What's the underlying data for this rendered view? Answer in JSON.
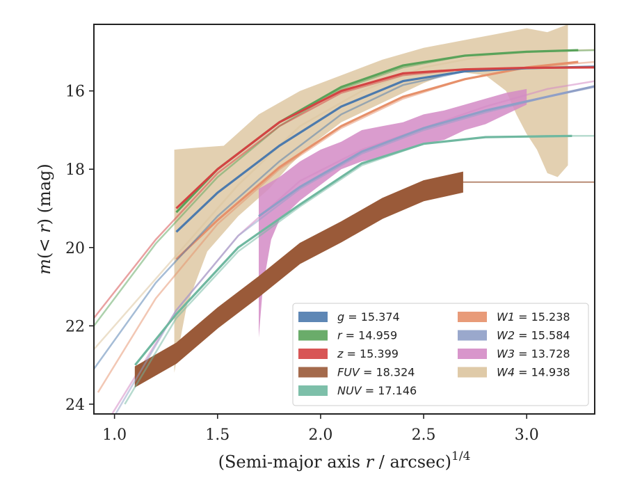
{
  "chart_data": {
    "type": "line",
    "xlabel": "(Semi-major axis r / arcsec)^{1/4}",
    "xlabel_parts": {
      "pre": "(Semi-major axis ",
      "var": "r",
      "post": " / arcsec)",
      "sup": "1/4"
    },
    "ylabel": "m(< r) (mag)",
    "ylabel_parts": {
      "m": "m",
      "open": "(",
      "lt": "< ",
      "r": "r",
      "close": ")",
      "unit": " (mag)"
    },
    "xlim": [
      0.9,
      3.33
    ],
    "ylim": [
      24.25,
      14.3
    ],
    "y_inverted": true,
    "xticks": [
      1.0,
      1.5,
      2.0,
      2.5,
      3.0
    ],
    "xtick_labels": [
      "1.0",
      "1.5",
      "2.0",
      "2.5",
      "3.0"
    ],
    "yticks": [
      16,
      18,
      20,
      22,
      24
    ],
    "ytick_labels": [
      "16",
      "18",
      "20",
      "22",
      "24"
    ],
    "grid": false,
    "legend_position": "lower-right",
    "legend_columns": 2,
    "series": [
      {
        "name": "g",
        "total": "15.374",
        "color": "#4c7aad",
        "kind": "curve",
        "fit": [
          [
            0.9,
            23.1
          ],
          [
            1.2,
            20.9
          ],
          [
            1.5,
            19.2
          ],
          [
            1.8,
            17.8
          ],
          [
            2.1,
            16.6
          ],
          [
            2.4,
            15.85
          ],
          [
            2.7,
            15.5
          ],
          [
            3.0,
            15.42
          ],
          [
            3.33,
            15.38
          ]
        ],
        "data": [
          [
            1.3,
            19.6
          ],
          [
            1.5,
            18.6
          ],
          [
            1.8,
            17.4
          ],
          [
            2.1,
            16.4
          ],
          [
            2.4,
            15.75
          ],
          [
            2.7,
            15.5
          ],
          [
            3.0,
            15.42
          ],
          [
            3.33,
            15.38
          ]
        ],
        "band": 0.04,
        "data_until": 3.33
      },
      {
        "name": "r",
        "total": "14.959",
        "color": "#5aa35a",
        "kind": "curve",
        "fit": [
          [
            0.9,
            22.0
          ],
          [
            1.2,
            19.9
          ],
          [
            1.5,
            18.2
          ],
          [
            1.8,
            16.9
          ],
          [
            2.1,
            15.95
          ],
          [
            2.4,
            15.4
          ],
          [
            2.7,
            15.1
          ],
          [
            3.0,
            15.0
          ],
          [
            3.33,
            14.96
          ]
        ],
        "data": [
          [
            1.3,
            19.1
          ],
          [
            1.5,
            18.0
          ],
          [
            1.8,
            16.8
          ],
          [
            2.1,
            15.9
          ],
          [
            2.4,
            15.35
          ],
          [
            2.7,
            15.1
          ],
          [
            3.0,
            15.0
          ],
          [
            3.25,
            14.96
          ]
        ],
        "band": 0.04,
        "data_until": 3.25
      },
      {
        "name": "z",
        "total": "15.399",
        "color": "#d44343",
        "kind": "curve",
        "fit": [
          [
            0.9,
            21.8
          ],
          [
            1.2,
            19.8
          ],
          [
            1.5,
            18.1
          ],
          [
            1.8,
            16.9
          ],
          [
            2.1,
            16.05
          ],
          [
            2.4,
            15.6
          ],
          [
            2.7,
            15.45
          ],
          [
            3.0,
            15.41
          ],
          [
            3.33,
            15.4
          ]
        ],
        "data": [
          [
            1.3,
            19.0
          ],
          [
            1.5,
            18.0
          ],
          [
            1.8,
            16.8
          ],
          [
            2.1,
            16.0
          ],
          [
            2.4,
            15.55
          ],
          [
            2.7,
            15.45
          ],
          [
            3.0,
            15.41
          ],
          [
            3.33,
            15.4
          ]
        ],
        "band": 0.04,
        "data_until": 3.33
      },
      {
        "name": "FUV",
        "total": "18.324",
        "color": "#9a5a39",
        "kind": "data",
        "data": [
          [
            1.1,
            23.3
          ],
          [
            1.3,
            22.7
          ],
          [
            1.5,
            21.8
          ],
          [
            1.7,
            21.0
          ],
          [
            1.9,
            20.15
          ],
          [
            2.1,
            19.6
          ],
          [
            2.3,
            19.0
          ],
          [
            2.5,
            18.55
          ],
          [
            2.69,
            18.33
          ]
        ],
        "band": 0.26,
        "tail": [
          [
            2.69,
            18.33
          ],
          [
            3.33,
            18.33
          ]
        ]
      },
      {
        "name": "NUV",
        "total": "17.146",
        "color": "#6fb8a0",
        "kind": "curve",
        "fit": [
          [
            1.05,
            24.0
          ],
          [
            1.3,
            21.8
          ],
          [
            1.6,
            20.1
          ],
          [
            1.9,
            18.95
          ],
          [
            2.2,
            17.9
          ],
          [
            2.5,
            17.35
          ],
          [
            2.8,
            17.18
          ],
          [
            3.1,
            17.15
          ],
          [
            3.33,
            17.146
          ]
        ],
        "data": [
          [
            1.1,
            23.0
          ],
          [
            1.3,
            21.7
          ],
          [
            1.6,
            20.0
          ],
          [
            1.9,
            18.9
          ],
          [
            2.2,
            17.85
          ],
          [
            2.5,
            17.35
          ],
          [
            2.8,
            17.18
          ],
          [
            3.22,
            17.15
          ]
        ],
        "band": 0.06,
        "data_until": 3.22
      },
      {
        "name": "W1",
        "total": "15.238",
        "color": "#e6906a",
        "kind": "curve",
        "fit": [
          [
            0.92,
            23.7
          ],
          [
            1.2,
            21.3
          ],
          [
            1.5,
            19.4
          ],
          [
            1.8,
            18.0
          ],
          [
            2.1,
            16.95
          ],
          [
            2.4,
            16.2
          ],
          [
            2.7,
            15.7
          ],
          [
            3.0,
            15.4
          ],
          [
            3.33,
            15.26
          ]
        ],
        "data": [
          [
            1.3,
            20.3
          ],
          [
            1.5,
            19.3
          ],
          [
            1.8,
            17.95
          ],
          [
            2.1,
            16.9
          ],
          [
            2.4,
            16.15
          ],
          [
            2.7,
            15.7
          ],
          [
            3.0,
            15.4
          ],
          [
            3.25,
            15.26
          ]
        ],
        "band": 0.04,
        "data_until": 3.25
      },
      {
        "name": "W2",
        "total": "15.584",
        "color": "#8f9fc7",
        "kind": "curve",
        "fit": [
          [
            1.0,
            24.3
          ],
          [
            1.3,
            21.6
          ],
          [
            1.6,
            19.7
          ],
          [
            1.9,
            18.5
          ],
          [
            2.2,
            17.6
          ],
          [
            2.5,
            17.0
          ],
          [
            2.8,
            16.55
          ],
          [
            3.1,
            16.15
          ],
          [
            3.33,
            15.9
          ]
        ],
        "data": [
          [
            1.7,
            19.2
          ],
          [
            1.9,
            18.45
          ],
          [
            2.2,
            17.55
          ],
          [
            2.5,
            16.95
          ],
          [
            2.8,
            16.5
          ],
          [
            3.1,
            16.15
          ],
          [
            3.33,
            15.88
          ]
        ],
        "band": 0.05,
        "data_until": 3.33
      },
      {
        "name": "W3",
        "total": "13.728",
        "color": "#d48bc5",
        "kind": "band",
        "upper": [
          [
            1.7,
            18.5
          ],
          [
            1.8,
            18.2
          ],
          [
            1.9,
            17.8
          ],
          [
            2.0,
            17.5
          ],
          [
            2.1,
            17.3
          ],
          [
            2.2,
            17.0
          ],
          [
            2.3,
            16.9
          ],
          [
            2.4,
            16.8
          ],
          [
            2.5,
            16.6
          ],
          [
            2.6,
            16.5
          ],
          [
            2.7,
            16.35
          ],
          [
            2.8,
            16.2
          ],
          [
            2.9,
            16.05
          ],
          [
            3.0,
            15.95
          ]
        ],
        "lower": [
          [
            1.7,
            22.3
          ],
          [
            1.72,
            21.0
          ],
          [
            1.76,
            19.8
          ],
          [
            1.8,
            19.3
          ],
          [
            1.9,
            18.8
          ],
          [
            2.0,
            18.4
          ],
          [
            2.1,
            18.0
          ],
          [
            2.2,
            17.8
          ],
          [
            2.3,
            17.7
          ],
          [
            2.4,
            17.5
          ],
          [
            2.5,
            17.35
          ],
          [
            2.6,
            17.25
          ],
          [
            2.7,
            17.0
          ],
          [
            2.8,
            16.85
          ],
          [
            2.9,
            16.6
          ],
          [
            3.0,
            16.35
          ]
        ],
        "fit": [
          [
            0.9,
            25.0
          ],
          [
            1.3,
            21.6
          ],
          [
            1.6,
            19.7
          ],
          [
            1.9,
            18.3
          ],
          [
            2.2,
            17.5
          ],
          [
            2.5,
            16.95
          ],
          [
            2.8,
            16.4
          ],
          [
            3.1,
            15.95
          ],
          [
            3.33,
            15.75
          ]
        ]
      },
      {
        "name": "W4",
        "total": "14.938",
        "color": "#dcc49e",
        "kind": "band",
        "upper": [
          [
            1.29,
            17.5
          ],
          [
            1.4,
            17.45
          ],
          [
            1.53,
            17.4
          ],
          [
            1.7,
            16.6
          ],
          [
            1.9,
            16.0
          ],
          [
            2.1,
            15.6
          ],
          [
            2.3,
            15.2
          ],
          [
            2.5,
            14.9
          ],
          [
            2.7,
            14.7
          ],
          [
            2.85,
            14.55
          ],
          [
            3.0,
            14.4
          ],
          [
            3.1,
            14.5
          ],
          [
            3.2,
            14.3
          ]
        ],
        "lower": [
          [
            1.29,
            23.2
          ],
          [
            1.31,
            22.6
          ],
          [
            1.35,
            21.5
          ],
          [
            1.45,
            20.1
          ],
          [
            1.6,
            19.2
          ],
          [
            1.75,
            18.5
          ],
          [
            1.85,
            17.9
          ],
          [
            1.95,
            17.4
          ],
          [
            2.1,
            16.8
          ],
          [
            2.3,
            16.3
          ],
          [
            2.5,
            15.8
          ],
          [
            2.65,
            15.5
          ],
          [
            2.8,
            15.6
          ],
          [
            2.9,
            16.0
          ],
          [
            2.95,
            16.6
          ],
          [
            3.0,
            17.1
          ],
          [
            3.05,
            17.5
          ],
          [
            3.1,
            18.1
          ],
          [
            3.15,
            18.2
          ],
          [
            3.2,
            17.9
          ]
        ],
        "fit": [
          [
            0.9,
            22.6
          ],
          [
            1.3,
            20.2
          ],
          [
            1.6,
            18.4
          ],
          [
            1.9,
            16.9
          ],
          [
            2.2,
            16.0
          ],
          [
            2.5,
            15.4
          ],
          [
            2.8,
            15.1
          ],
          [
            3.1,
            14.98
          ],
          [
            3.33,
            14.95
          ]
        ]
      }
    ]
  }
}
